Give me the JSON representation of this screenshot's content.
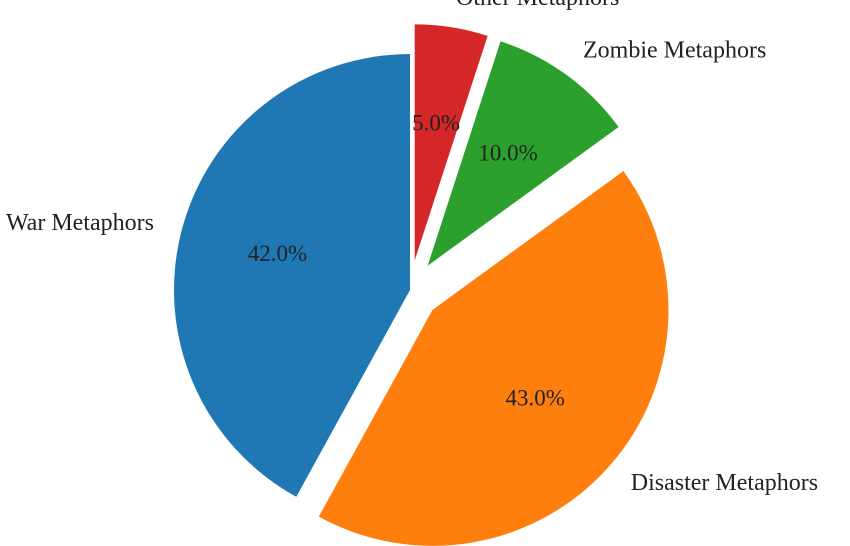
{
  "chart_data": {
    "type": "pie",
    "title": "",
    "start_angle_deg": 90,
    "direction": "clockwise",
    "slices": [
      {
        "label": "Other Metaphors",
        "value": 5.0,
        "pct_text": "5.0%",
        "color": "#d62728",
        "exploded": true
      },
      {
        "label": "Zombie Metaphors",
        "value": 10.0,
        "pct_text": "10.0%",
        "color": "#2ca02c",
        "exploded": true
      },
      {
        "label": "Disaster Metaphors",
        "value": 43.0,
        "pct_text": "43.0%",
        "color": "#ff7f0e",
        "exploded": true
      },
      {
        "label": "War Metaphors",
        "value": 42.0,
        "pct_text": "42.0%",
        "color": "#1f77b4",
        "exploded": false
      }
    ]
  }
}
